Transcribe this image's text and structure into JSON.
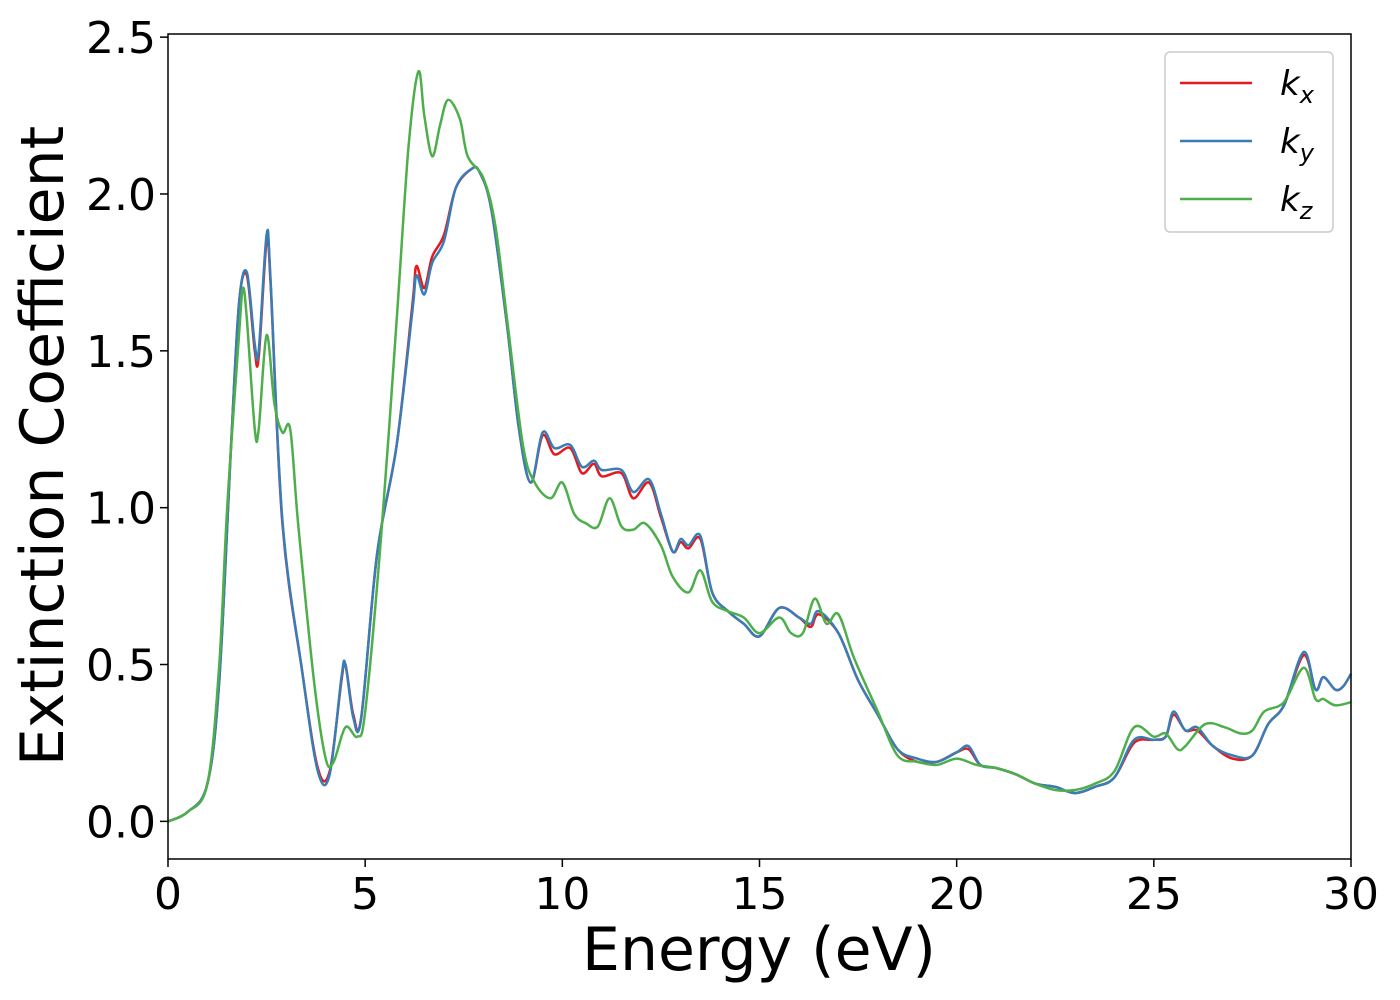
{
  "chart_data": {
    "type": "line",
    "xlabel": "Energy (eV)",
    "ylabel": "Extinction Coefficient",
    "xlim": [
      0,
      30
    ],
    "ylim": [
      -0.12,
      2.51
    ],
    "x_ticks": [
      "0",
      "5",
      "10",
      "15",
      "20",
      "25",
      "30"
    ],
    "y_ticks": [
      "0.0",
      "0.5",
      "1.0",
      "1.5",
      "2.0",
      "2.5"
    ],
    "grid": false,
    "legend_position": "top-right",
    "series": [
      {
        "name": "kx",
        "legend_base": "k",
        "legend_sub": "x",
        "color": "#e41a1c",
        "points": [
          [
            0,
            0.0
          ],
          [
            0.5,
            0.03
          ],
          [
            1.0,
            0.12
          ],
          [
            1.3,
            0.45
          ],
          [
            1.6,
            1.2
          ],
          [
            1.8,
            1.65
          ],
          [
            2.0,
            1.74
          ],
          [
            2.2,
            1.5
          ],
          [
            2.3,
            1.48
          ],
          [
            2.5,
            1.85
          ],
          [
            2.6,
            1.72
          ],
          [
            2.9,
            0.95
          ],
          [
            3.4,
            0.48
          ],
          [
            3.8,
            0.17
          ],
          [
            4.1,
            0.16
          ],
          [
            4.4,
            0.45
          ],
          [
            4.5,
            0.5
          ],
          [
            4.7,
            0.34
          ],
          [
            4.9,
            0.33
          ],
          [
            5.3,
            0.85
          ],
          [
            5.8,
            1.2
          ],
          [
            6.2,
            1.65
          ],
          [
            6.3,
            1.77
          ],
          [
            6.5,
            1.7
          ],
          [
            6.7,
            1.8
          ],
          [
            7.0,
            1.87
          ],
          [
            7.3,
            2.02
          ],
          [
            7.7,
            2.08
          ],
          [
            7.9,
            2.07
          ],
          [
            8.2,
            1.95
          ],
          [
            8.6,
            1.58
          ],
          [
            8.9,
            1.25
          ],
          [
            9.2,
            1.08
          ],
          [
            9.5,
            1.23
          ],
          [
            9.8,
            1.17
          ],
          [
            10.2,
            1.19
          ],
          [
            10.5,
            1.11
          ],
          [
            10.8,
            1.14
          ],
          [
            11.0,
            1.1
          ],
          [
            11.5,
            1.11
          ],
          [
            11.8,
            1.03
          ],
          [
            12.2,
            1.08
          ],
          [
            12.5,
            0.97
          ],
          [
            12.8,
            0.86
          ],
          [
            13.0,
            0.89
          ],
          [
            13.2,
            0.87
          ],
          [
            13.5,
            0.9
          ],
          [
            13.8,
            0.73
          ],
          [
            14.2,
            0.67
          ],
          [
            14.6,
            0.63
          ],
          [
            15.0,
            0.59
          ],
          [
            15.5,
            0.68
          ],
          [
            16.0,
            0.65
          ],
          [
            16.3,
            0.62
          ],
          [
            16.5,
            0.66
          ],
          [
            17.0,
            0.6
          ],
          [
            17.5,
            0.45
          ],
          [
            18.0,
            0.34
          ],
          [
            18.5,
            0.23
          ],
          [
            19.0,
            0.19
          ],
          [
            19.5,
            0.19
          ],
          [
            20.0,
            0.22
          ],
          [
            20.3,
            0.23
          ],
          [
            20.6,
            0.18
          ],
          [
            21.0,
            0.17
          ],
          [
            21.5,
            0.15
          ],
          [
            22.0,
            0.12
          ],
          [
            22.5,
            0.11
          ],
          [
            23.0,
            0.09
          ],
          [
            23.5,
            0.11
          ],
          [
            24.0,
            0.14
          ],
          [
            24.5,
            0.25
          ],
          [
            25.0,
            0.26
          ],
          [
            25.3,
            0.27
          ],
          [
            25.5,
            0.34
          ],
          [
            25.8,
            0.29
          ],
          [
            26.1,
            0.29
          ],
          [
            26.5,
            0.24
          ],
          [
            27.0,
            0.2
          ],
          [
            27.5,
            0.21
          ],
          [
            27.9,
            0.31
          ],
          [
            28.3,
            0.37
          ],
          [
            28.8,
            0.53
          ],
          [
            29.1,
            0.42
          ],
          [
            29.3,
            0.46
          ],
          [
            29.6,
            0.42
          ],
          [
            29.8,
            0.43
          ],
          [
            30.0,
            0.47
          ]
        ]
      },
      {
        "name": "ky",
        "legend_base": "k",
        "legend_sub": "y",
        "color": "#377eb8",
        "points": [
          [
            0,
            0.0
          ],
          [
            0.5,
            0.03
          ],
          [
            1.0,
            0.12
          ],
          [
            1.3,
            0.45
          ],
          [
            1.6,
            1.2
          ],
          [
            1.8,
            1.65
          ],
          [
            2.0,
            1.75
          ],
          [
            2.2,
            1.52
          ],
          [
            2.3,
            1.5
          ],
          [
            2.5,
            1.87
          ],
          [
            2.6,
            1.73
          ],
          [
            2.9,
            0.96
          ],
          [
            3.4,
            0.48
          ],
          [
            3.8,
            0.16
          ],
          [
            4.1,
            0.15
          ],
          [
            4.4,
            0.46
          ],
          [
            4.5,
            0.5
          ],
          [
            4.7,
            0.33
          ],
          [
            4.9,
            0.33
          ],
          [
            5.3,
            0.85
          ],
          [
            5.8,
            1.2
          ],
          [
            6.2,
            1.63
          ],
          [
            6.3,
            1.74
          ],
          [
            6.5,
            1.68
          ],
          [
            6.7,
            1.78
          ],
          [
            7.0,
            1.85
          ],
          [
            7.3,
            2.02
          ],
          [
            7.7,
            2.08
          ],
          [
            7.9,
            2.07
          ],
          [
            8.2,
            1.95
          ],
          [
            8.6,
            1.58
          ],
          [
            8.9,
            1.25
          ],
          [
            9.2,
            1.08
          ],
          [
            9.5,
            1.24
          ],
          [
            9.8,
            1.19
          ],
          [
            10.2,
            1.2
          ],
          [
            10.5,
            1.13
          ],
          [
            10.8,
            1.15
          ],
          [
            11.0,
            1.12
          ],
          [
            11.5,
            1.12
          ],
          [
            11.8,
            1.05
          ],
          [
            12.2,
            1.09
          ],
          [
            12.5,
            0.98
          ],
          [
            12.8,
            0.86
          ],
          [
            13.0,
            0.9
          ],
          [
            13.2,
            0.88
          ],
          [
            13.5,
            0.91
          ],
          [
            13.8,
            0.73
          ],
          [
            14.2,
            0.67
          ],
          [
            14.6,
            0.63
          ],
          [
            15.0,
            0.59
          ],
          [
            15.5,
            0.68
          ],
          [
            16.0,
            0.65
          ],
          [
            16.3,
            0.63
          ],
          [
            16.5,
            0.67
          ],
          [
            17.0,
            0.6
          ],
          [
            17.5,
            0.45
          ],
          [
            18.0,
            0.34
          ],
          [
            18.5,
            0.23
          ],
          [
            19.0,
            0.2
          ],
          [
            19.5,
            0.19
          ],
          [
            20.0,
            0.22
          ],
          [
            20.3,
            0.24
          ],
          [
            20.6,
            0.18
          ],
          [
            21.0,
            0.17
          ],
          [
            21.5,
            0.15
          ],
          [
            22.0,
            0.12
          ],
          [
            22.5,
            0.11
          ],
          [
            23.0,
            0.09
          ],
          [
            23.5,
            0.11
          ],
          [
            24.0,
            0.14
          ],
          [
            24.5,
            0.26
          ],
          [
            25.0,
            0.26
          ],
          [
            25.3,
            0.27
          ],
          [
            25.5,
            0.35
          ],
          [
            25.8,
            0.29
          ],
          [
            26.1,
            0.3
          ],
          [
            26.5,
            0.24
          ],
          [
            27.0,
            0.21
          ],
          [
            27.5,
            0.21
          ],
          [
            27.9,
            0.31
          ],
          [
            28.3,
            0.37
          ],
          [
            28.8,
            0.54
          ],
          [
            29.1,
            0.42
          ],
          [
            29.3,
            0.46
          ],
          [
            29.6,
            0.42
          ],
          [
            29.8,
            0.43
          ],
          [
            30.0,
            0.47
          ]
        ]
      },
      {
        "name": "kz",
        "legend_base": "k",
        "legend_sub": "z",
        "color": "#4daf4a",
        "points": [
          [
            0,
            0.0
          ],
          [
            0.5,
            0.03
          ],
          [
            1.0,
            0.12
          ],
          [
            1.3,
            0.5
          ],
          [
            1.5,
            1.0
          ],
          [
            1.8,
            1.55
          ],
          [
            1.9,
            1.7
          ],
          [
            2.0,
            1.6
          ],
          [
            2.2,
            1.25
          ],
          [
            2.3,
            1.25
          ],
          [
            2.5,
            1.55
          ],
          [
            2.7,
            1.33
          ],
          [
            2.9,
            1.24
          ],
          [
            3.1,
            1.25
          ],
          [
            3.3,
            0.95
          ],
          [
            3.7,
            0.45
          ],
          [
            4.0,
            0.2
          ],
          [
            4.2,
            0.19
          ],
          [
            4.5,
            0.3
          ],
          [
            4.8,
            0.27
          ],
          [
            5.0,
            0.35
          ],
          [
            5.4,
            0.9
          ],
          [
            5.8,
            1.6
          ],
          [
            6.1,
            2.15
          ],
          [
            6.35,
            2.39
          ],
          [
            6.5,
            2.25
          ],
          [
            6.7,
            2.12
          ],
          [
            6.9,
            2.22
          ],
          [
            7.1,
            2.3
          ],
          [
            7.4,
            2.24
          ],
          [
            7.6,
            2.12
          ],
          [
            8.0,
            2.05
          ],
          [
            8.3,
            1.9
          ],
          [
            8.6,
            1.6
          ],
          [
            9.0,
            1.2
          ],
          [
            9.3,
            1.08
          ],
          [
            9.7,
            1.03
          ],
          [
            10.0,
            1.08
          ],
          [
            10.3,
            0.98
          ],
          [
            10.6,
            0.95
          ],
          [
            10.9,
            0.94
          ],
          [
            11.2,
            1.03
          ],
          [
            11.5,
            0.94
          ],
          [
            11.8,
            0.93
          ],
          [
            12.1,
            0.95
          ],
          [
            12.5,
            0.88
          ],
          [
            12.8,
            0.78
          ],
          [
            13.2,
            0.73
          ],
          [
            13.5,
            0.8
          ],
          [
            13.8,
            0.7
          ],
          [
            14.2,
            0.67
          ],
          [
            14.6,
            0.65
          ],
          [
            15.0,
            0.6
          ],
          [
            15.5,
            0.65
          ],
          [
            15.8,
            0.6
          ],
          [
            16.1,
            0.6
          ],
          [
            16.4,
            0.71
          ],
          [
            16.7,
            0.63
          ],
          [
            17.0,
            0.66
          ],
          [
            17.4,
            0.52
          ],
          [
            18.0,
            0.35
          ],
          [
            18.5,
            0.21
          ],
          [
            19.0,
            0.19
          ],
          [
            19.5,
            0.18
          ],
          [
            20.0,
            0.2
          ],
          [
            20.5,
            0.18
          ],
          [
            21.0,
            0.17
          ],
          [
            21.5,
            0.15
          ],
          [
            22.0,
            0.12
          ],
          [
            22.5,
            0.1
          ],
          [
            23.0,
            0.1
          ],
          [
            23.5,
            0.12
          ],
          [
            24.0,
            0.16
          ],
          [
            24.5,
            0.3
          ],
          [
            25.0,
            0.27
          ],
          [
            25.3,
            0.28
          ],
          [
            25.6,
            0.23
          ],
          [
            25.8,
            0.24
          ],
          [
            26.3,
            0.31
          ],
          [
            26.8,
            0.3
          ],
          [
            27.2,
            0.28
          ],
          [
            27.5,
            0.29
          ],
          [
            27.8,
            0.35
          ],
          [
            28.3,
            0.38
          ],
          [
            28.8,
            0.49
          ],
          [
            29.1,
            0.39
          ],
          [
            29.3,
            0.39
          ],
          [
            29.6,
            0.37
          ],
          [
            30.0,
            0.38
          ]
        ]
      }
    ]
  }
}
